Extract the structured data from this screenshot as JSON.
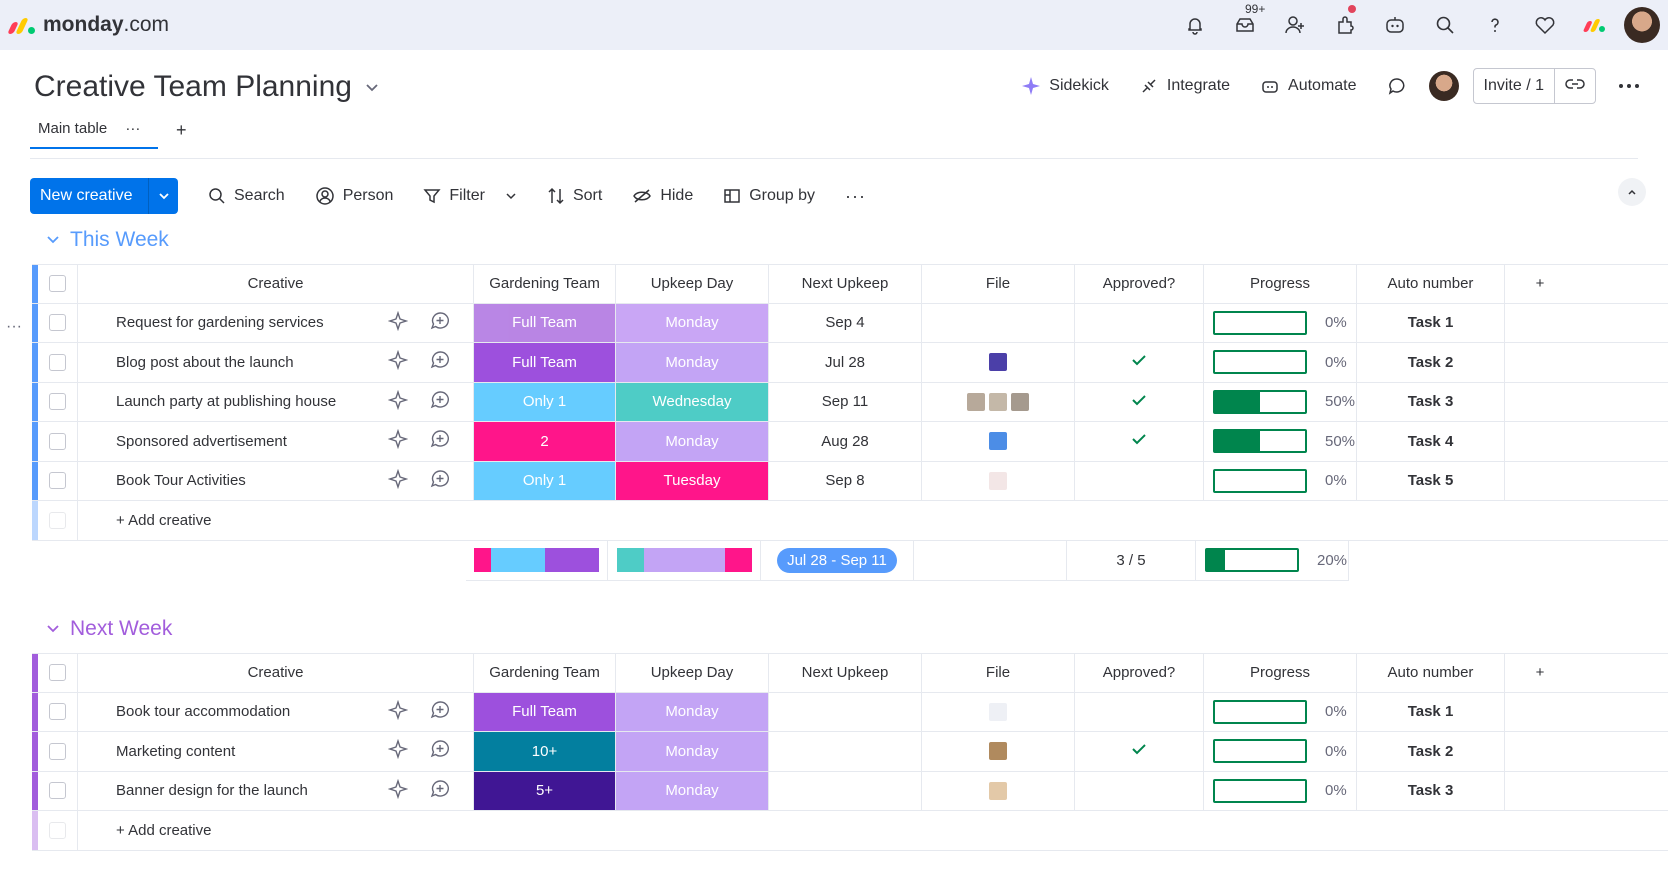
{
  "app": {
    "logo_bold": "monday",
    "logo_light": ".com",
    "logo_colors": [
      "#ff3d57",
      "#ffcb00",
      "#00ca72"
    ],
    "notif_badge": "99+"
  },
  "board": {
    "title": "Creative Team Planning",
    "tab_main": "Main table",
    "tab_more": "···",
    "tab_add": "+",
    "actions": {
      "sidekick": "Sidekick",
      "integrate": "Integrate",
      "automate": "Automate",
      "invite": "Invite / 1"
    }
  },
  "toolbar": {
    "new_label": "New creative",
    "search": "Search",
    "person": "Person",
    "filter": "Filter",
    "sort": "Sort",
    "hide": "Hide",
    "group_by": "Group by",
    "more": "···"
  },
  "columns": {
    "creative": "Creative",
    "team": "Gardening Team",
    "day": "Upkeep Day",
    "next": "Next Upkeep",
    "file": "File",
    "approved": "Approved?",
    "progress": "Progress",
    "auto": "Auto number",
    "add": "+"
  },
  "groups": [
    {
      "title": "This Week",
      "color": "#579bfc",
      "add_label": "+ Add creative",
      "rows": [
        {
          "name": "Request for gardening services",
          "team": "Full Team",
          "team_color": "#a25ddc",
          "team_dim": true,
          "day": "Monday",
          "day_color": "#c9a6f5",
          "next": "Sep 4",
          "files": [],
          "approved": false,
          "progress": 0,
          "pct": "0%",
          "auto": "Task 1"
        },
        {
          "name": "Blog post about the launch",
          "team": "Full Team",
          "team_color": "#9d50dd",
          "day": "Monday",
          "day_color": "#c3a4f5",
          "next": "Jul 28",
          "files": [
            "#4b3fa8"
          ],
          "approved": true,
          "progress": 0,
          "pct": "0%",
          "auto": "Task 2"
        },
        {
          "name": "Launch party at publishing house",
          "team": "Only 1",
          "team_color": "#66ccff",
          "day": "Wednesday",
          "day_color": "#4eccc6",
          "next": "Sep 11",
          "files": [
            "#b7a99a",
            "#c4b8a8",
            "#a59a8e"
          ],
          "approved": true,
          "progress": 0.5,
          "pct": "50%",
          "auto": "Task 3"
        },
        {
          "name": "Sponsored advertisement",
          "team": "2",
          "team_color": "#ff158a",
          "day": "Monday",
          "day_color": "#c3a4f5",
          "next": "Aug 28",
          "files": [
            "#4c8de6"
          ],
          "approved": true,
          "progress": 0.5,
          "pct": "50%",
          "auto": "Task 4"
        },
        {
          "name": "Book Tour Activities",
          "team": "Only 1",
          "team_color": "#66ccff",
          "day": "Tuesday",
          "day_color": "#ff158a",
          "next": "Sep 8",
          "files": [
            "#f3e6e6"
          ],
          "approved": false,
          "progress": 0,
          "pct": "0%",
          "auto": "Task 5"
        }
      ],
      "summary": {
        "team_segments": [
          {
            "color": "#ff158a",
            "share": 0.14
          },
          {
            "color": "#66ccff",
            "share": 0.43
          },
          {
            "color": "#9d50dd",
            "share": 0.43
          }
        ],
        "day_segments": [
          {
            "color": "#4eccc6",
            "share": 0.2
          },
          {
            "color": "#c3a4f5",
            "share": 0.6
          },
          {
            "color": "#ff158a",
            "share": 0.2
          }
        ],
        "date_range": "Jul 28 - Sep 11",
        "approved": "3 / 5",
        "progress": 0.2,
        "pct": "20%"
      }
    },
    {
      "title": "Next Week",
      "color": "#a25ddc",
      "add_label": "+ Add creative",
      "rows": [
        {
          "name": "Book tour accommodation",
          "team": "Full Team",
          "team_color": "#9d50dd",
          "day": "Monday",
          "day_color": "#c3a4f5",
          "next": "",
          "files": [
            "#eef0f5"
          ],
          "approved": false,
          "progress": 0,
          "pct": "0%",
          "auto": "Task 1"
        },
        {
          "name": "Marketing content",
          "team": "10+",
          "team_color": "#037f9f",
          "day": "Monday",
          "day_color": "#c3a4f5",
          "next": "",
          "files": [
            "#b08a5e"
          ],
          "approved": true,
          "progress": 0,
          "pct": "0%",
          "auto": "Task 2"
        },
        {
          "name": "Banner design for the launch",
          "team": "5+",
          "team_color": "#401694",
          "day": "Monday",
          "day_color": "#c3a4f5",
          "next": "",
          "files": [
            "#e3c9a8"
          ],
          "approved": false,
          "progress": 0,
          "pct": "0%",
          "auto": "Task 3"
        }
      ]
    }
  ]
}
